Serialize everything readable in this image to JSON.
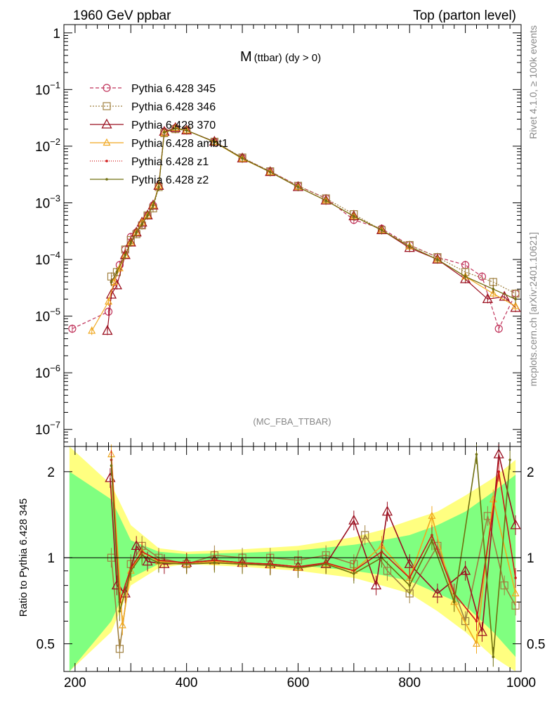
{
  "header": {
    "left": "1960 GeV ppbar",
    "right": "Top (parton level)"
  },
  "side_labels": {
    "rivet": "Rivet 4.1.0, ≥ 100k events",
    "mcplots": "mcplots.cern.ch [arXiv:2401.10621]"
  },
  "chart_data": [
    {
      "type": "line",
      "title": "M (ttbar) (dy > 0)",
      "title_main": "M",
      "title_sub": "(ttbar) (dy > 0)",
      "watermark": "(MC_FBA_TTBAR)",
      "yscale": "log",
      "xlim": [
        180,
        1000
      ],
      "ylim": [
        5e-08,
        1.4
      ],
      "ytick_labels": [
        {
          "value": 1,
          "base": "1",
          "exp": ""
        },
        {
          "value": 0.1,
          "base": "10",
          "exp": "−1"
        },
        {
          "value": 0.01,
          "base": "10",
          "exp": "−2"
        },
        {
          "value": 0.001,
          "base": "10",
          "exp": "−3"
        },
        {
          "value": 0.0001,
          "base": "10",
          "exp": "−4"
        },
        {
          "value": 1e-05,
          "base": "10",
          "exp": "−5"
        },
        {
          "value": 1e-06,
          "base": "10",
          "exp": "−6"
        },
        {
          "value": 1e-07,
          "base": "10",
          "exp": "−7"
        }
      ],
      "legend_position": "top-left",
      "series": [
        {
          "name": "Pythia 6.428 345",
          "color": "#c0335a",
          "marker": "circle",
          "dash": "5,3",
          "x": [
            195,
            260,
            270,
            280,
            290,
            300,
            310,
            320,
            330,
            340,
            350,
            360,
            380,
            400,
            450,
            500,
            550,
            600,
            650,
            700,
            750,
            800,
            850,
            900,
            930,
            960,
            990
          ],
          "y": [
            6e-06,
            1.2e-05,
            4e-05,
            8e-05,
            0.00015,
            0.00025,
            0.0003,
            0.0004,
            0.0006,
            0.0009,
            0.002,
            0.018,
            0.021,
            0.019,
            0.012,
            0.0062,
            0.0036,
            0.002,
            0.0012,
            0.0005,
            0.00035,
            0.00018,
            0.00011,
            8e-05,
            5e-05,
            6e-06,
            2.5e-05
          ]
        },
        {
          "name": "Pythia 6.428 346",
          "color": "#a08040",
          "marker": "square",
          "dash": "2,2",
          "x": [
            265,
            275,
            290,
            300,
            310,
            320,
            330,
            340,
            350,
            360,
            380,
            400,
            450,
            500,
            550,
            600,
            650,
            700,
            750,
            800,
            850,
            900,
            950,
            990
          ],
          "y": [
            5e-05,
            6e-05,
            0.00015,
            0.00022,
            0.00028,
            0.0004,
            0.0006,
            0.0008,
            0.0019,
            0.017,
            0.02,
            0.019,
            0.012,
            0.0063,
            0.0036,
            0.002,
            0.0012,
            0.00063,
            0.00033,
            0.00018,
            0.00011,
            6e-05,
            4e-05,
            2.5e-05
          ]
        },
        {
          "name": "Pythia 6.428 370",
          "color": "#9b1020",
          "marker": "triangle",
          "dash": "",
          "x": [
            258,
            265,
            275,
            290,
            300,
            310,
            320,
            330,
            340,
            350,
            360,
            380,
            400,
            450,
            500,
            550,
            600,
            650,
            700,
            750,
            800,
            850,
            900,
            940,
            970,
            990
          ],
          "y": [
            5.5e-06,
            2.4e-05,
            3.5e-05,
            0.00012,
            0.0002,
            0.0003,
            0.00045,
            0.0006,
            0.0009,
            0.002,
            0.018,
            0.021,
            0.019,
            0.012,
            0.0061,
            0.0035,
            0.0019,
            0.0011,
            0.00058,
            0.00033,
            0.00016,
            0.0001,
            4.5e-05,
            2e-05,
            2.2e-05,
            1.4e-05
          ]
        },
        {
          "name": "Pythia 6.428 ambt1",
          "color": "#f0a820",
          "marker": "triangle-open-small",
          "dash": "",
          "x": [
            230,
            260,
            270,
            280,
            290,
            300,
            310,
            320,
            330,
            340,
            350,
            360,
            380,
            400,
            450,
            500,
            550,
            600,
            650,
            700,
            750,
            800,
            850,
            900,
            950,
            990
          ],
          "y": [
            5.5e-06,
            1.8e-05,
            4e-05,
            7e-05,
            0.00012,
            0.0002,
            0.0003,
            0.00045,
            0.0006,
            0.0009,
            0.002,
            0.017,
            0.021,
            0.019,
            0.0118,
            0.006,
            0.0035,
            0.0019,
            0.0011,
            0.00058,
            0.00033,
            0.00017,
            0.0001,
            5e-05,
            2.5e-05,
            1.5e-05
          ]
        },
        {
          "name": "Pythia 6.428 z1",
          "color": "#d01818",
          "marker": "dot",
          "dash": "1,2",
          "x": [
            265,
            275,
            290,
            300,
            310,
            320,
            330,
            340,
            350,
            360,
            380,
            400,
            450,
            500,
            550,
            600,
            650,
            700,
            750,
            800,
            850,
            900,
            950,
            990
          ],
          "y": [
            4e-05,
            6e-05,
            0.00013,
            0.00021,
            0.0003,
            0.00042,
            0.0006,
            0.0009,
            0.0019,
            0.0175,
            0.0205,
            0.019,
            0.0119,
            0.0061,
            0.0035,
            0.0019,
            0.0011,
            0.00058,
            0.00033,
            0.00017,
            0.0001,
            5e-05,
            3e-05,
            2e-05
          ]
        },
        {
          "name": "Pythia 6.428 z2",
          "color": "#707010",
          "marker": "dot",
          "dash": "",
          "x": [
            265,
            275,
            290,
            300,
            310,
            320,
            330,
            340,
            350,
            360,
            380,
            400,
            450,
            500,
            550,
            600,
            650,
            700,
            750,
            800,
            850,
            900,
            950,
            990
          ],
          "y": [
            4e-05,
            6e-05,
            0.00012,
            0.0002,
            0.0003,
            0.00042,
            0.0006,
            0.0009,
            0.0019,
            0.0175,
            0.0205,
            0.019,
            0.0119,
            0.0061,
            0.0035,
            0.0019,
            0.0011,
            0.00058,
            0.00033,
            0.00017,
            0.0001,
            5e-05,
            3e-05,
            2e-05
          ]
        }
      ]
    },
    {
      "type": "line",
      "ylabel": "Ratio to Pythia 6.428 345",
      "yscale": "log",
      "xlim": [
        180,
        1000
      ],
      "ylim": [
        0.4,
        2.45
      ],
      "yticks": [
        0.5,
        1,
        2
      ],
      "ytick_labels": [
        "0.5",
        "1",
        "2"
      ],
      "xticks": [
        200,
        400,
        600,
        800,
        1000
      ],
      "xtick_labels": [
        "200",
        "400",
        "600",
        "800",
        "1000"
      ],
      "reference_line": 1,
      "bands": {
        "x": [
          190,
          265,
          300,
          350,
          400,
          500,
          600,
          700,
          750,
          800,
          850,
          900,
          950,
          990
        ],
        "yellow_lo": [
          0.4,
          0.55,
          0.8,
          0.92,
          0.95,
          0.93,
          0.9,
          0.85,
          0.8,
          0.75,
          0.65,
          0.55,
          0.45,
          0.4
        ],
        "yellow_hi": [
          2.45,
          1.8,
          1.3,
          1.08,
          1.05,
          1.07,
          1.1,
          1.18,
          1.25,
          1.35,
          1.45,
          1.65,
          1.9,
          2.2
        ],
        "green_lo": [
          0.4,
          0.6,
          0.85,
          0.95,
          0.97,
          0.96,
          0.94,
          0.9,
          0.87,
          0.83,
          0.75,
          0.68,
          0.55,
          0.45
        ],
        "green_hi": [
          2.0,
          1.6,
          1.15,
          1.05,
          1.03,
          1.04,
          1.06,
          1.11,
          1.15,
          1.2,
          1.3,
          1.45,
          1.7,
          1.95
        ]
      },
      "series": [
        {
          "name": "Pythia 6.428 346",
          "color": "#a08040",
          "x": [
            265,
            280,
            300,
            320,
            350,
            400,
            450,
            500,
            550,
            600,
            650,
            700,
            720,
            760,
            800,
            850,
            900,
            940,
            970,
            990
          ],
          "y": [
            1.0,
            0.48,
            0.95,
            1.1,
            1.0,
            0.95,
            1.02,
            1.0,
            1.0,
            0.98,
            1.02,
            0.95,
            1.2,
            0.9,
            0.75,
            1.1,
            0.6,
            1.4,
            0.8,
            0.68
          ]
        },
        {
          "name": "Pythia 6.428 370",
          "color": "#9b1020",
          "x": [
            263,
            275,
            290,
            310,
            330,
            360,
            400,
            450,
            500,
            550,
            600,
            650,
            700,
            740,
            760,
            800,
            850,
            900,
            930,
            960,
            990
          ],
          "y": [
            1.9,
            0.8,
            0.75,
            1.1,
            0.97,
            0.95,
            0.96,
            0.98,
            0.96,
            0.95,
            0.93,
            0.95,
            1.35,
            0.8,
            1.45,
            0.95,
            0.75,
            0.9,
            0.55,
            2.3,
            1.3
          ]
        },
        {
          "name": "Pythia 6.428 ambt1",
          "color": "#f0a820",
          "x": [
            265,
            285,
            300,
            320,
            350,
            400,
            450,
            500,
            550,
            600,
            650,
            700,
            750,
            800,
            840,
            880,
            920,
            950,
            990
          ],
          "y": [
            2.3,
            0.58,
            0.9,
            1.05,
            0.97,
            0.95,
            0.97,
            0.95,
            0.94,
            0.92,
            0.95,
            0.9,
            1.1,
            0.85,
            1.4,
            0.7,
            0.5,
            1.6,
            0.75
          ]
        },
        {
          "name": "Pythia 6.428 z1",
          "color": "#d01818",
          "x": [
            265,
            280,
            300,
            320,
            350,
            400,
            450,
            500,
            550,
            600,
            650,
            700,
            750,
            800,
            840,
            880,
            920,
            960,
            990
          ],
          "y": [
            2.2,
            0.7,
            0.92,
            1.05,
            0.98,
            0.96,
            0.98,
            0.96,
            0.95,
            0.93,
            0.96,
            0.9,
            1.05,
            0.85,
            1.2,
            0.75,
            0.6,
            2.0,
            0.85
          ]
        },
        {
          "name": "Pythia 6.428 z2",
          "color": "#707010",
          "x": [
            265,
            280,
            300,
            320,
            350,
            400,
            450,
            500,
            550,
            600,
            650,
            700,
            750,
            800,
            840,
            880,
            920,
            950,
            980
          ],
          "y": [
            2.1,
            0.65,
            0.9,
            1.02,
            0.96,
            0.95,
            0.96,
            0.95,
            0.94,
            0.92,
            0.95,
            0.88,
            1.0,
            0.8,
            1.15,
            0.7,
            2.3,
            0.45,
            2.2
          ]
        }
      ]
    }
  ]
}
